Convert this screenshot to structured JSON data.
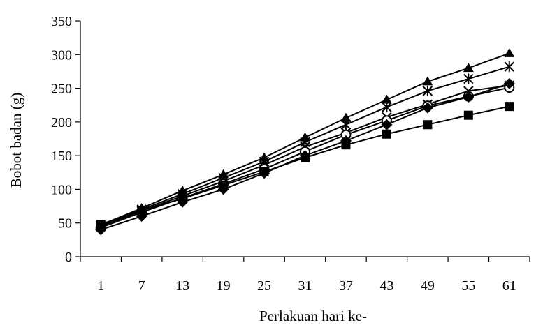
{
  "chart_data": {
    "type": "line",
    "title": "",
    "xlabel": "Perlakuan hari ke-",
    "ylabel": "Bobot badan (g)",
    "categories": [
      "1",
      "7",
      "13",
      "19",
      "25",
      "31",
      "37",
      "43",
      "49",
      "55",
      "61"
    ],
    "ylim": [
      0,
      350
    ],
    "yticks": [
      0,
      50,
      100,
      150,
      200,
      250,
      300,
      350
    ],
    "grid": false,
    "legend": "none",
    "series": [
      {
        "marker": "triangle",
        "color": "#000000",
        "values": [
          47,
          72,
          98,
          122,
          147,
          177,
          206,
          233,
          260,
          280,
          302
        ]
      },
      {
        "marker": "asterisk",
        "color": "#000000",
        "values": [
          46,
          70,
          93,
          117,
          141,
          170,
          196,
          222,
          246,
          264,
          282
        ]
      },
      {
        "marker": "x",
        "color": "#000000",
        "values": [
          45,
          68,
          90,
          112,
          136,
          163,
          184,
          207,
          226,
          246,
          254
        ]
      },
      {
        "marker": "circle",
        "color": "#000000",
        "values": [
          43,
          66,
          87,
          108,
          130,
          156,
          181,
          202,
          224,
          238,
          251
        ]
      },
      {
        "marker": "diamond",
        "color": "#000000",
        "values": [
          40,
          60,
          81,
          100,
          124,
          150,
          172,
          196,
          221,
          237,
          257
        ]
      },
      {
        "marker": "square",
        "color": "#000000",
        "values": [
          48,
          69,
          86,
          106,
          126,
          147,
          166,
          182,
          196,
          210,
          223
        ]
      }
    ]
  }
}
